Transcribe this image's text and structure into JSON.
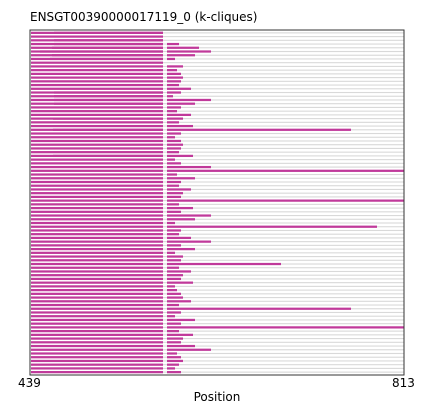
{
  "chart_data": {
    "type": "bar",
    "title": "ENSGT00390000017119_0 (k-cliques)",
    "xlabel": "Position",
    "ylabel": "",
    "xlim": [
      439,
      813
    ],
    "x_tick_labels": [
      "439",
      "813"
    ],
    "colors": {
      "highlight": "#c0399a",
      "gap": "#d9d9d9",
      "frame": "#333333"
    },
    "row_count": 92,
    "common_highlight": [
      [
        440,
        572
      ]
    ],
    "row_extra_highlights": [
      [
        [
          463,
          572
        ]
      ],
      [],
      [
        [
          463,
          572
        ]
      ],
      [
        [
          463,
          572
        ],
        [
          576,
          588
        ]
      ],
      [
        [
          461,
          572
        ],
        [
          576,
          608
        ]
      ],
      [
        [
          449,
          572
        ],
        [
          576,
          620
        ]
      ],
      [
        [
          461,
          572
        ],
        [
          576,
          604
        ]
      ],
      [
        [
          459,
          572
        ],
        [
          576,
          584
        ]
      ],
      [],
      [
        [
          576,
          592
        ]
      ],
      [
        [
          576,
          586
        ]
      ],
      [
        [
          576,
          590
        ]
      ],
      [
        [
          576,
          592
        ]
      ],
      [
        [
          576,
          590
        ]
      ],
      [
        [
          576,
          588
        ]
      ],
      [
        [
          576,
          600
        ]
      ],
      [
        [
          463,
          572
        ],
        [
          576,
          590
        ]
      ],
      [
        [
          463,
          572
        ],
        [
          576,
          582
        ]
      ],
      [
        [
          463,
          572
        ],
        [
          576,
          620
        ]
      ],
      [
        [
          463,
          572
        ],
        [
          576,
          604
        ]
      ],
      [
        [
          576,
          590
        ]
      ],
      [
        [
          576,
          586
        ]
      ],
      [
        [
          576,
          600
        ]
      ],
      [
        [
          462,
          572
        ],
        [
          576,
          592
        ]
      ],
      [
        [
          576,
          588
        ]
      ],
      [
        [
          576,
          602
        ]
      ],
      [
        [
          462,
          572
        ],
        [
          576,
          760
        ]
      ],
      [
        [
          576,
          590
        ]
      ],
      [
        [
          576,
          584
        ]
      ],
      [
        [
          576,
          590
        ]
      ],
      [
        [
          576,
          592
        ]
      ],
      [
        [
          576,
          590
        ]
      ],
      [
        [
          576,
          588
        ]
      ],
      [
        [
          462,
          572
        ],
        [
          576,
          602
        ]
      ],
      [
        [
          576,
          584
        ]
      ],
      [
        [
          576,
          590
        ]
      ],
      [
        [
          576,
          620
        ]
      ],
      [
        [
          576,
          813
        ]
      ],
      [
        [
          576,
          586
        ]
      ],
      [
        [
          576,
          604
        ]
      ],
      [
        [
          576,
          590
        ]
      ],
      [
        [
          576,
          588
        ]
      ],
      [
        [
          576,
          600
        ]
      ],
      [
        [
          576,
          592
        ]
      ],
      [
        [
          576,
          590
        ]
      ],
      [
        [
          576,
          813
        ]
      ],
      [
        [
          576,
          588
        ]
      ],
      [
        [
          576,
          602
        ]
      ],
      [
        [
          576,
          590
        ]
      ],
      [
        [
          576,
          620
        ]
      ],
      [
        [
          576,
          604
        ]
      ],
      [
        [
          576,
          584
        ]
      ],
      [
        [
          576,
          786
        ]
      ],
      [
        [
          576,
          590
        ]
      ],
      [
        [
          576,
          588
        ]
      ],
      [
        [
          576,
          600
        ]
      ],
      [
        [
          576,
          620
        ]
      ],
      [
        [
          576,
          590
        ]
      ],
      [
        [
          576,
          604
        ]
      ],
      [
        [
          576,
          584
        ]
      ],
      [
        [
          576,
          592
        ]
      ],
      [
        [
          576,
          590
        ]
      ],
      [
        [
          576,
          690
        ]
      ],
      [
        [
          576,
          588
        ]
      ],
      [
        [
          576,
          600
        ]
      ],
      [
        [
          576,
          592
        ]
      ],
      [
        [
          576,
          590
        ]
      ],
      [
        [
          576,
          602
        ]
      ],
      [
        [
          576,
          584
        ]
      ],
      [
        [
          576,
          586
        ]
      ],
      [
        [
          576,
          590
        ]
      ],
      [
        [
          576,
          592
        ]
      ],
      [
        [
          576,
          600
        ]
      ],
      [
        [
          576,
          588
        ]
      ],
      [
        [
          576,
          760
        ]
      ],
      [
        [
          576,
          590
        ]
      ],
      [
        [
          576,
          584
        ]
      ],
      [
        [
          576,
          604
        ]
      ],
      [
        [
          576,
          590
        ]
      ],
      [
        [
          576,
          813
        ]
      ],
      [
        [
          576,
          588
        ]
      ],
      [
        [
          576,
          602
        ]
      ],
      [
        [
          576,
          592
        ]
      ],
      [
        [
          576,
          590
        ]
      ],
      [
        [
          576,
          604
        ]
      ],
      [
        [
          576,
          620
        ]
      ],
      [
        [
          576,
          586
        ]
      ],
      [
        [
          576,
          590
        ]
      ],
      [
        [
          576,
          592
        ]
      ],
      [
        [
          576,
          588
        ]
      ],
      [
        [
          576,
          584
        ]
      ],
      [
        [
          576,
          590
        ]
      ]
    ],
    "gap_segments": [
      [
        440,
        813
      ]
    ]
  }
}
